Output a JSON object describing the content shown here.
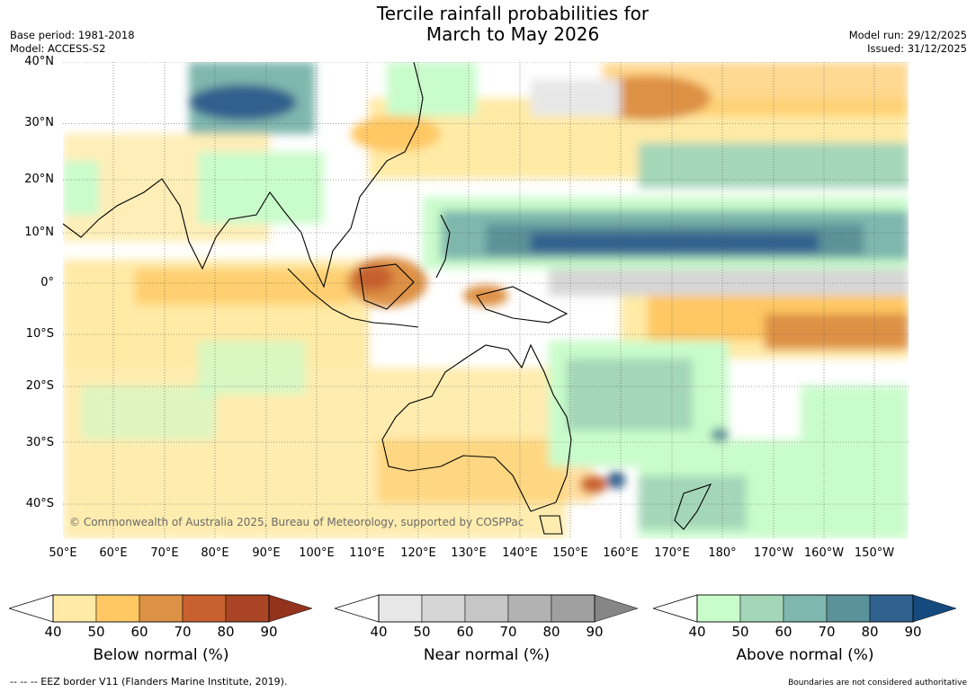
{
  "title_line1": "Tercile rainfall probabilities for",
  "title_line2": "March to May 2026",
  "base_period": "Base period: 1981-2018",
  "model": "Model: ACCESS-S2",
  "model_run": "Model run: 29/12/2025",
  "issued": "Issued: 31/12/2025",
  "copyright": "© Commonwealth of Australia 2025, Bureau of Meteorology, supported by COSPPac",
  "lat_labels": [
    "40°N",
    "30°N",
    "20°N",
    "10°N",
    "0°",
    "10°S",
    "20°S",
    "30°S",
    "40°S"
  ],
  "lon_labels": [
    "50°E",
    "60°E",
    "70°E",
    "80°E",
    "90°E",
    "100°E",
    "110°E",
    "120°E",
    "130°E",
    "140°E",
    "150°E",
    "160°E",
    "170°E",
    "180°",
    "170°W",
    "160°W",
    "150°W"
  ],
  "colorbars": [
    {
      "label": "Below normal (%)",
      "ticks": [
        "40",
        "50",
        "60",
        "70",
        "80",
        "90"
      ],
      "colors": [
        "#ffeaa6",
        "#ffc863",
        "#dd9144",
        "#c8612e",
        "#a94524",
        "#93331d"
      ]
    },
    {
      "label": "Near normal (%)",
      "ticks": [
        "40",
        "50",
        "60",
        "70",
        "80",
        "90"
      ],
      "colors": [
        "#e7e7e7",
        "#d6d6d6",
        "#c6c6c6",
        "#b2b2b2",
        "#a0a0a0",
        "#868686"
      ]
    },
    {
      "label": "Above normal (%)",
      "ticks": [
        "40",
        "50",
        "60",
        "70",
        "80",
        "90"
      ],
      "colors": [
        "#c9fccb",
        "#a4d6b8",
        "#7fb7ae",
        "#5b9198",
        "#31618e",
        "#144a7e"
      ]
    }
  ],
  "footer_left": "--  --  -- EEZ border V11 (Flanders Marine Institute, 2019).",
  "footer_right": "Boundaries are not considered authoritative"
}
